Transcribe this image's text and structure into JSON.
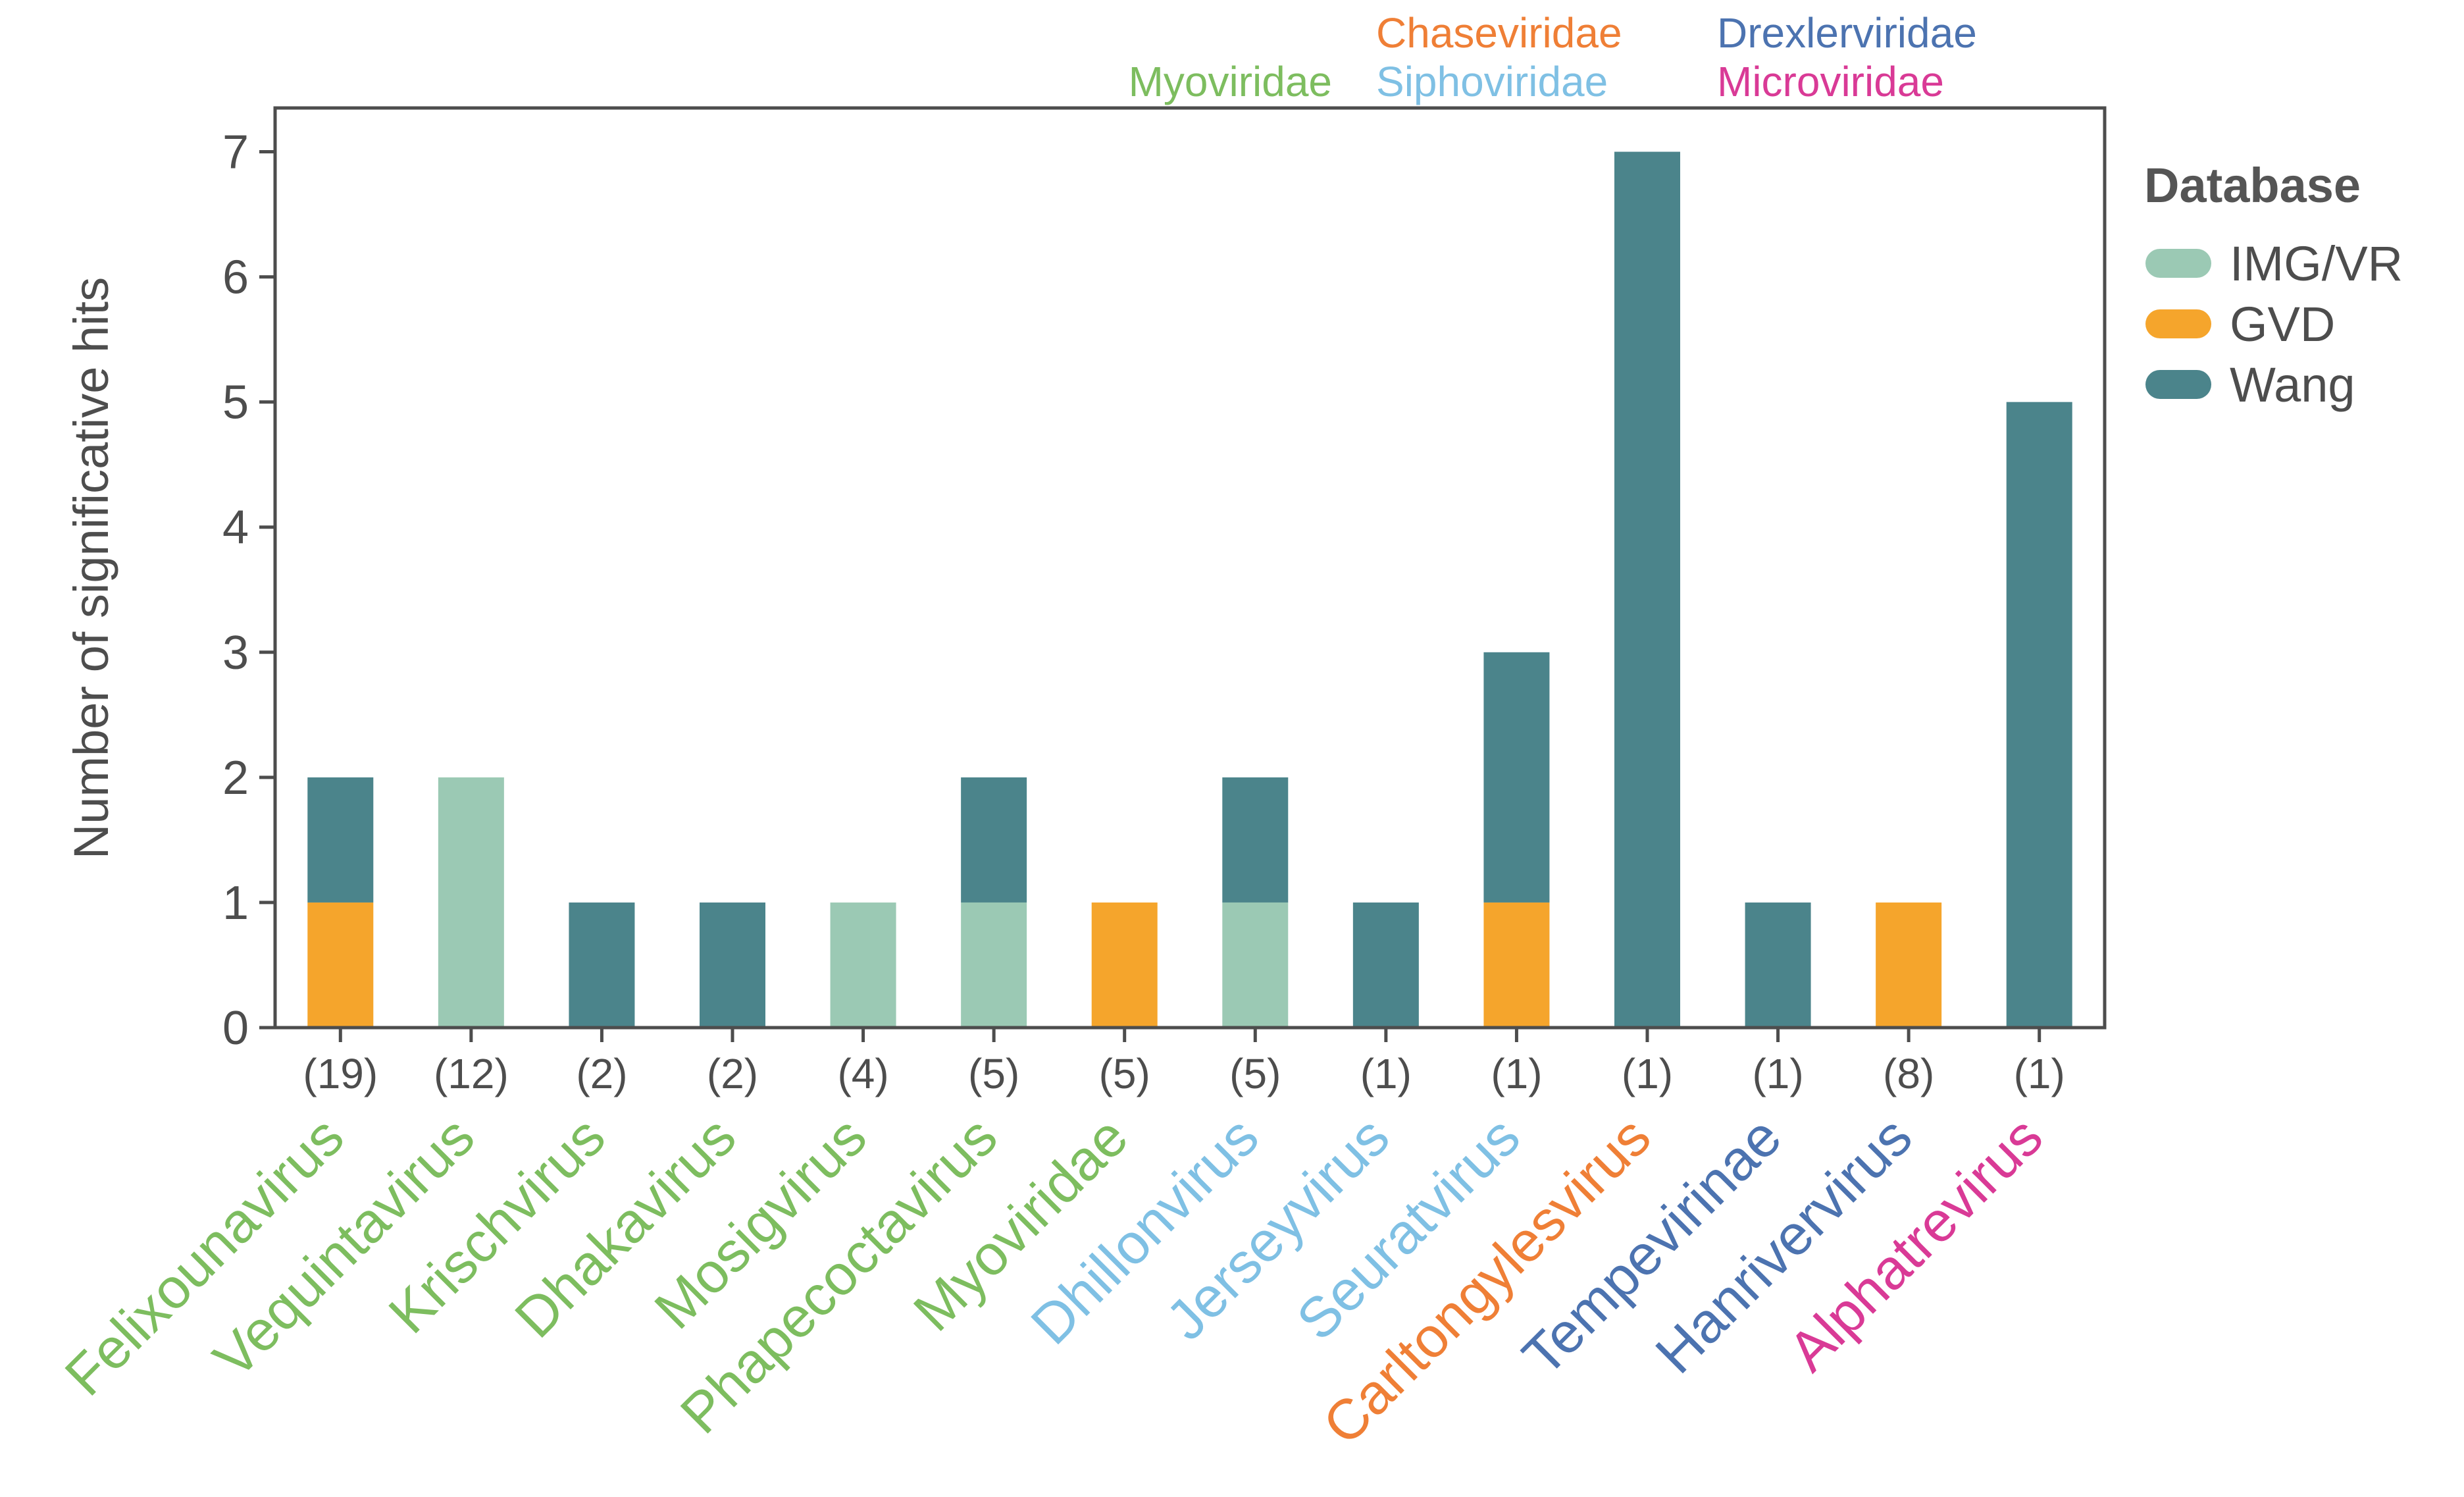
{
  "chart_data": {
    "type": "bar",
    "stacked": true,
    "title": "",
    "xlabel": "",
    "ylabel": "Number of significative hits",
    "ylim": [
      0,
      7.35
    ],
    "yticks": [
      0,
      1,
      2,
      3,
      4,
      5,
      6,
      7
    ],
    "categories": [
      "Felixounavirus",
      "Vequintavirus",
      "Krischvirus",
      "Dhakavirus",
      "Mosigvirus",
      "Phapecoctavirus",
      "Myoviridae",
      "Dhillonvirus",
      "Jerseyvirus",
      "Seuratvirus",
      "Carltongylesvirus",
      "Tempevirinae",
      "Hanrivervirus",
      "Alphatrevirus"
    ],
    "counts": [
      "(19)",
      "(12)",
      "(2)",
      "(2)",
      "(4)",
      "(5)",
      "(5)",
      "(5)",
      "(1)",
      "(1)",
      "(1)",
      "(1)",
      "(8)",
      "(1)"
    ],
    "category_families": [
      "Myoviridae",
      "Myoviridae",
      "Myoviridae",
      "Myoviridae",
      "Myoviridae",
      "Myoviridae",
      "Myoviridae",
      "Siphoviridae",
      "Siphoviridae",
      "Siphoviridae",
      "Chaseviridae",
      "Drexlerviridae",
      "Drexlerviridae",
      "Microviridae"
    ],
    "series": [
      {
        "name": "IMG/VR",
        "color": "#9bc9b4",
        "values": [
          0,
          2,
          0,
          0,
          1,
          1,
          0,
          1,
          0,
          0,
          0,
          0,
          0,
          0
        ]
      },
      {
        "name": "GVD",
        "color": "#f5a52c",
        "values": [
          1,
          0,
          0,
          0,
          0,
          0,
          1,
          0,
          0,
          1,
          0,
          0,
          1,
          0
        ]
      },
      {
        "name": "Wang",
        "color": "#4b848b",
        "values": [
          1,
          0,
          1,
          1,
          0,
          1,
          0,
          1,
          1,
          2,
          7,
          1,
          0,
          5
        ]
      }
    ],
    "legend": {
      "title": "Database",
      "position": "right"
    },
    "families": [
      {
        "name": "Myoviridae",
        "color": "#7dbd5f"
      },
      {
        "name": "Chaseviridae",
        "color": "#ef7f36"
      },
      {
        "name": "Siphoviridae",
        "color": "#7fc0e4"
      },
      {
        "name": "Drexlerviridae",
        "color": "#4c73b0"
      },
      {
        "name": "Microviridae",
        "color": "#d93a96"
      }
    ],
    "grid": false
  }
}
